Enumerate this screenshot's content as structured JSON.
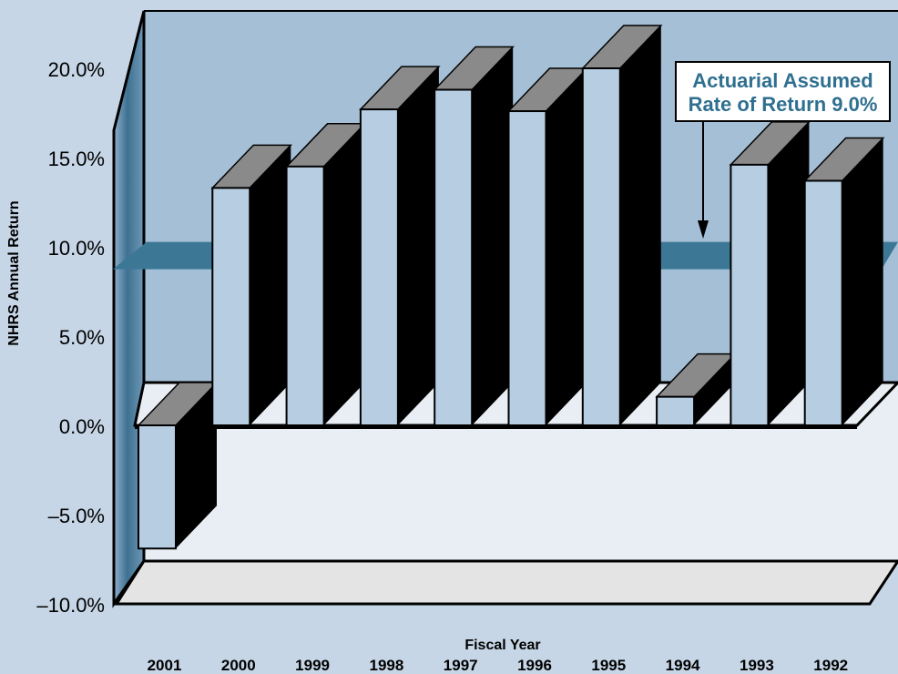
{
  "chart_data": {
    "type": "bar",
    "title": "",
    "ylabel": "NHRS Annual Return",
    "xlabel": "Fiscal Year",
    "ylim": [
      -10,
      20
    ],
    "ytick_labels": [
      "20.0%",
      "15.0%",
      "10.0%",
      "5.0%",
      "0.0%",
      "–5.0%",
      "–10.0%"
    ],
    "categories": [
      "2001",
      "2000",
      "1999",
      "1998",
      "1997",
      "1996",
      "1995",
      "1994",
      "1993",
      "1992"
    ],
    "values": [
      -6.9,
      13.3,
      14.5,
      17.7,
      18.8,
      17.6,
      20.0,
      1.6,
      14.6,
      13.7
    ],
    "reference_line": {
      "value": 9.0
    },
    "annotation": {
      "line1": "Actuarial Assumed",
      "line2": "Rate of Return 9.0%"
    },
    "colors": {
      "background": "#c6d6e6",
      "back_wall": "#a5bfd6",
      "floor": "#e9eef4",
      "bar_front": "#b7cde2",
      "bar_top": "#8a8a8a",
      "bar_side": "#000000",
      "reference_band": "#3c7896",
      "annotation_text": "#2f6f8f"
    }
  }
}
